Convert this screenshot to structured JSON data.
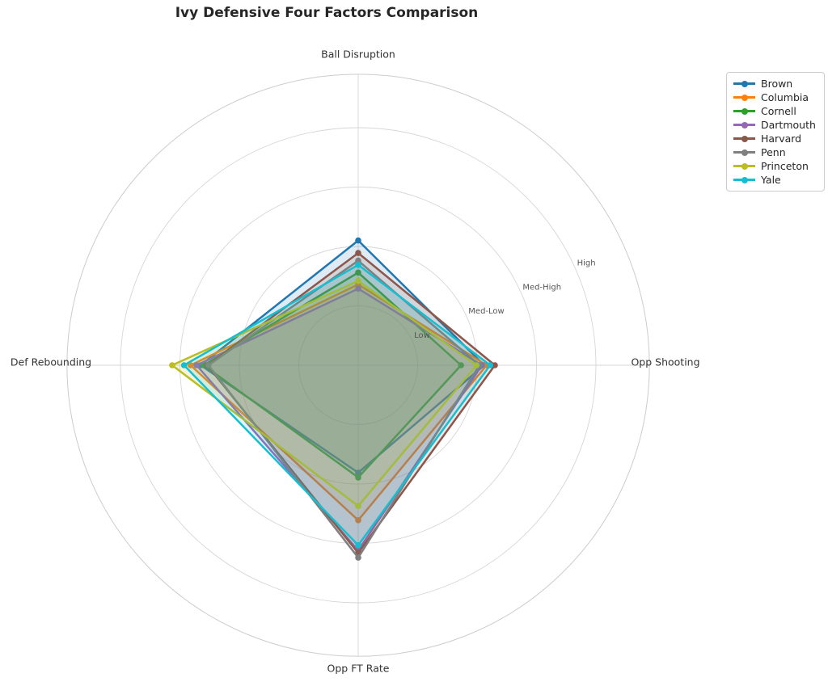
{
  "title": "Ivy Defensive Four Factors Comparison",
  "chart_data": {
    "type": "radar",
    "title": "Ivy Defensive Four Factors Comparison",
    "categories": [
      "Ball Disruption",
      "Opp Shooting",
      "Opp FT Rate",
      "Def Rebounding"
    ],
    "category_angles_deg": [
      90,
      0,
      270,
      180
    ],
    "tick_labels": [
      "Low",
      "Med-Low",
      "Med-High",
      "High"
    ],
    "tick_values": [
      1,
      2,
      3,
      4
    ],
    "rmax": 4.9,
    "grid": true,
    "grid_color": "#d6d6d6",
    "tick_label_color": "#555555",
    "axis_label_color": "#333333",
    "legend_position": "upper right",
    "series": [
      {
        "name": "Brown",
        "color": "#1f77b4",
        "values": [
          2.1,
          2.12,
          1.81,
          2.65
        ]
      },
      {
        "name": "Columbia",
        "color": "#ff7f0e",
        "values": [
          1.36,
          2.16,
          2.61,
          2.82
        ]
      },
      {
        "name": "Cornell",
        "color": "#2ca02c",
        "values": [
          1.56,
          1.73,
          1.89,
          2.6
        ]
      },
      {
        "name": "Dartmouth",
        "color": "#9467bd",
        "values": [
          1.29,
          2.08,
          3.12,
          2.72
        ]
      },
      {
        "name": "Harvard",
        "color": "#8c564b",
        "values": [
          1.89,
          2.3,
          3.16,
          2.54
        ]
      },
      {
        "name": "Penn",
        "color": "#7f7f7f",
        "values": [
          1.76,
          2.04,
          3.24,
          2.52
        ]
      },
      {
        "name": "Princeton",
        "color": "#bcbd22",
        "values": [
          1.42,
          1.99,
          2.37,
          3.13
        ]
      },
      {
        "name": "Yale",
        "color": "#17becf",
        "values": [
          1.69,
          2.22,
          3.03,
          2.93
        ]
      }
    ],
    "fill_alpha": 0.15
  }
}
